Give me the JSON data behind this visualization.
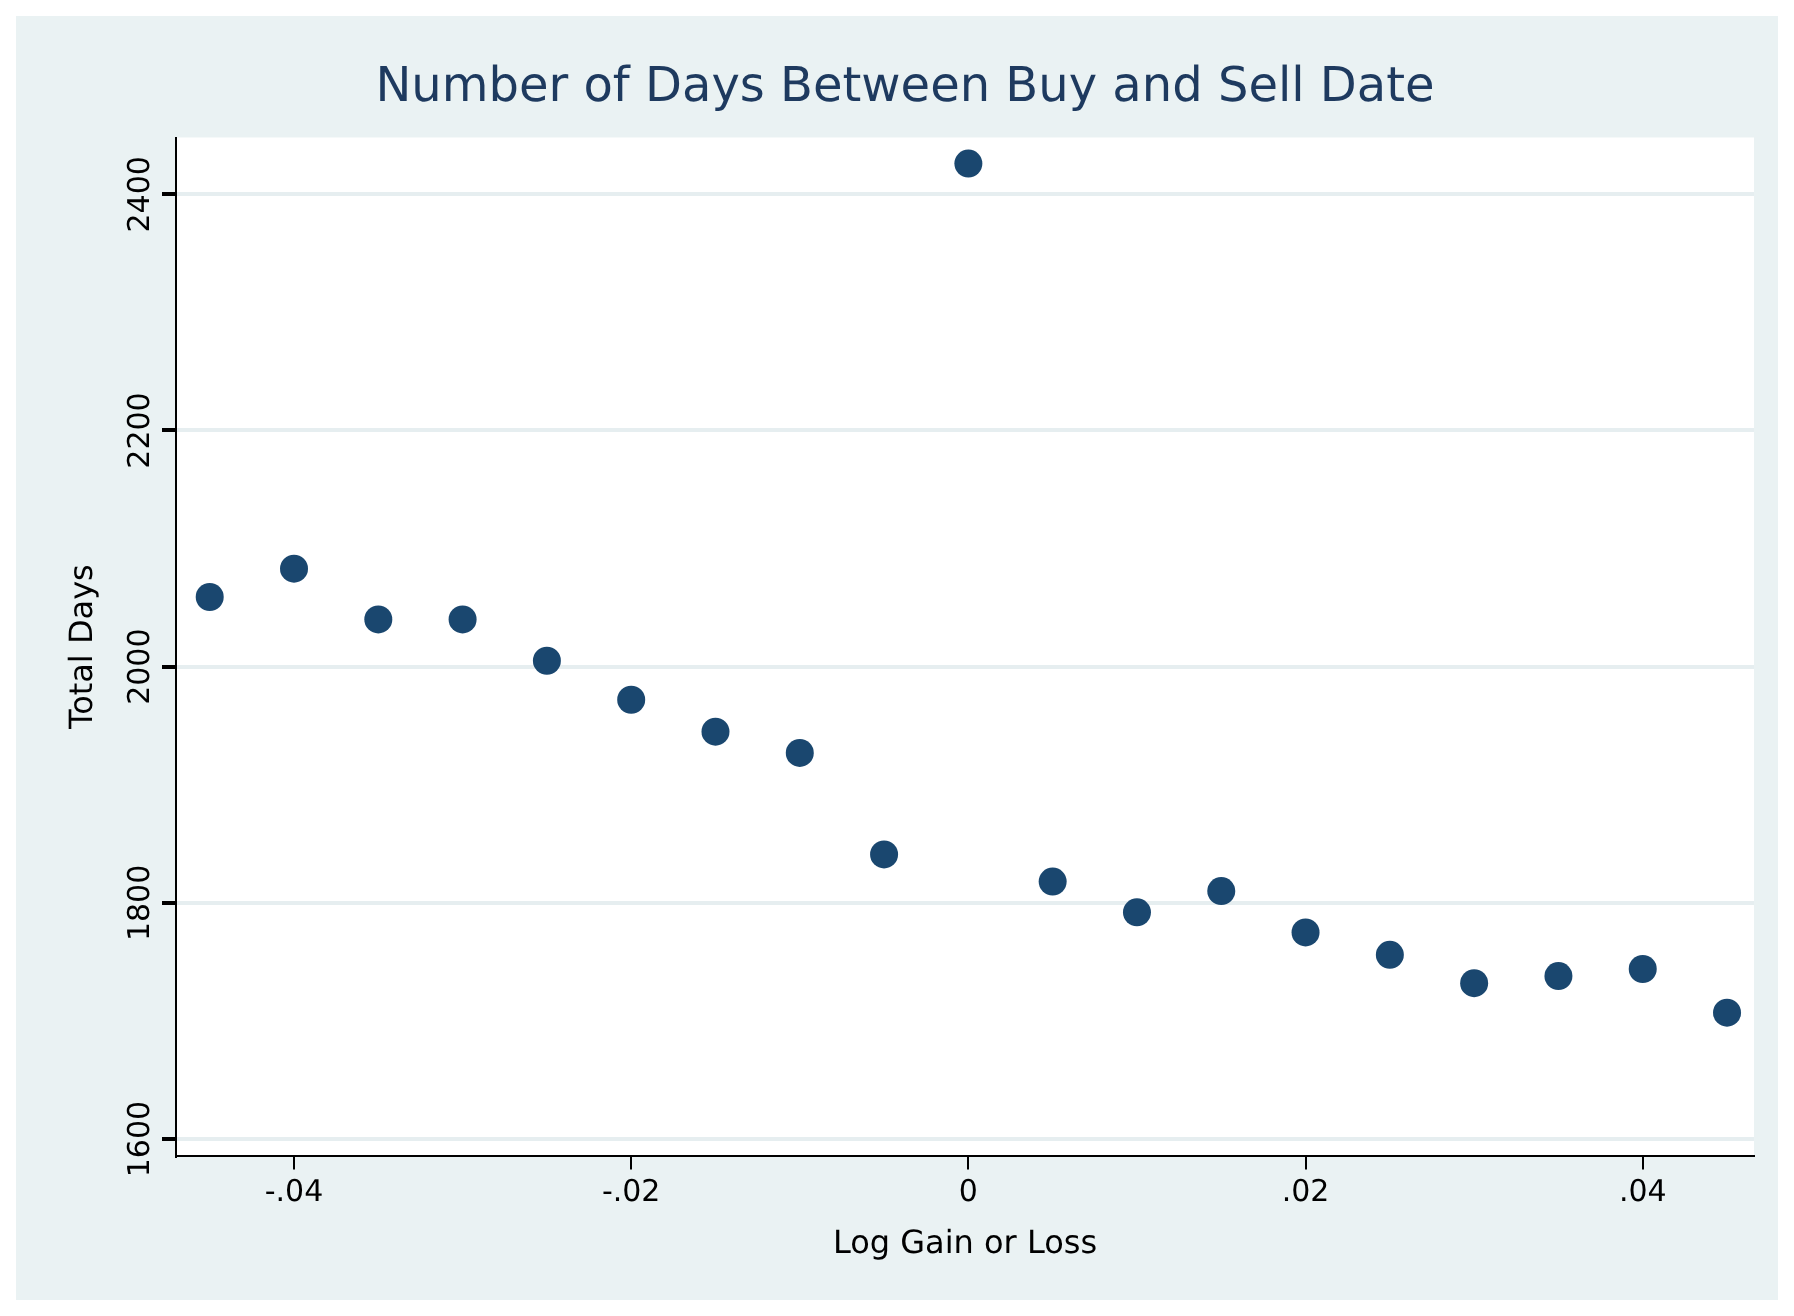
{
  "chart_data": {
    "type": "scatter",
    "title": "Number of Days Between Buy and Sell Date",
    "xlabel": "Log Gain or Loss",
    "ylabel": "Total Days",
    "x": [
      -0.045,
      -0.04,
      -0.035,
      -0.03,
      -0.025,
      -0.02,
      -0.015,
      -0.01,
      -0.005,
      0,
      0.005,
      0.01,
      0.015,
      0.02,
      0.025,
      0.03,
      0.035,
      0.04,
      0.045
    ],
    "series": [
      {
        "color": "#1a476f",
        "values": [
          2059,
          2083,
          2040,
          2040,
          2005,
          1972,
          1945,
          1927,
          1841,
          2426,
          1818,
          1792,
          1810,
          1775,
          1756,
          1732,
          1738,
          1744,
          1707
        ]
      }
    ],
    "xlim": [
      -0.047,
      0.0466
    ],
    "xticks": [
      {
        "value": -0.04,
        "label": "-.04"
      },
      {
        "value": -0.02,
        "label": "-.02"
      },
      {
        "value": 0,
        "label": "0"
      },
      {
        "value": 0.02,
        "label": ".02"
      },
      {
        "value": 0.04,
        "label": ".04"
      }
    ],
    "ylim": [
      1586,
      2448
    ],
    "yticks": [
      1600,
      1800,
      2000,
      2200,
      2400
    ],
    "grid": "y",
    "marker": "circle",
    "legend": false
  }
}
